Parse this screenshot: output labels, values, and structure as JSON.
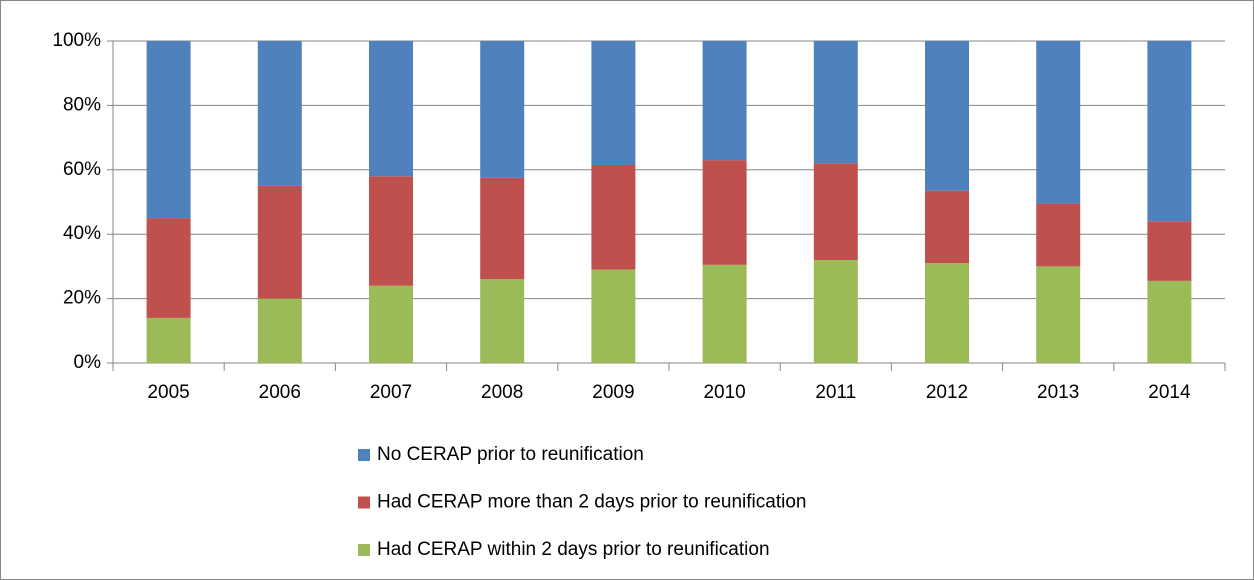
{
  "chart_data": {
    "type": "stacked_bar",
    "categories": [
      "2005",
      "2006",
      "2007",
      "2008",
      "2009",
      "2010",
      "2011",
      "2012",
      "2013",
      "2014"
    ],
    "series": [
      {
        "name": "No CERAP prior to reunification",
        "color": "#4f81bd",
        "values": [
          55,
          45,
          42,
          42.5,
          38.5,
          37,
          38,
          46.5,
          50.5,
          56
        ]
      },
      {
        "name": "Had CERAP more than 2 days prior to reunification",
        "color": "#c0504d",
        "values": [
          31,
          35,
          34,
          31.5,
          32.5,
          32.5,
          30,
          22.5,
          19.5,
          18.5
        ]
      },
      {
        "name": "Had CERAP within 2 days prior to reunification",
        "color": "#9bbb59",
        "values": [
          14,
          20,
          24,
          26,
          29,
          30.5,
          32,
          31,
          30,
          25.5
        ]
      }
    ],
    "ylim": [
      0,
      100
    ],
    "yticks": [
      {
        "value": 0,
        "label": "0%"
      },
      {
        "value": 20,
        "label": "20%"
      },
      {
        "value": 40,
        "label": "40%"
      },
      {
        "value": 60,
        "label": "60%"
      },
      {
        "value": 80,
        "label": "80%"
      },
      {
        "value": 100,
        "label": "100%"
      }
    ],
    "grid": true
  }
}
